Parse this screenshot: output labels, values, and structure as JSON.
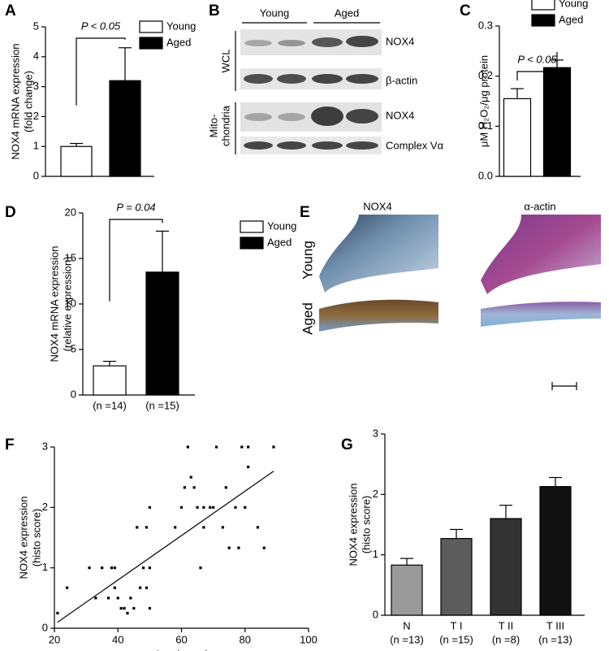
{
  "panel_labels": [
    "A",
    "B",
    "C",
    "D",
    "E",
    "F",
    "G"
  ],
  "blot": {
    "groups": [
      "Young",
      "Aged"
    ],
    "rows": [
      "NOX4",
      "β-actin",
      "NOX4",
      "Complex Vα"
    ],
    "sections": [
      [
        "WCL"
      ],
      [
        "Mito-",
        "chondria"
      ]
    ]
  },
  "histology": {
    "columns": [
      "NOX4",
      "α-actin"
    ],
    "rows": [
      "Young",
      "Aged"
    ]
  },
  "chart_data": [
    {
      "type": "bar",
      "ylabel": [
        "NOX4 mRNA expression",
        "(fold change)"
      ],
      "values": [
        1.0,
        3.2
      ],
      "errors": [
        0.1,
        1.1
      ],
      "colors": [
        "#ffffff",
        "#000000"
      ],
      "legend": [
        "Young",
        "Aged"
      ],
      "annotation": "P < 0.05",
      "ylim": [
        0,
        5
      ],
      "yticks": [
        0,
        1,
        2,
        3,
        4,
        5
      ]
    },
    {
      "type": "bar",
      "ylabel": [
        "μM H₂O₂/μg protein"
      ],
      "values": [
        0.155,
        0.217
      ],
      "errors": [
        0.02,
        0.015
      ],
      "colors": [
        "#ffffff",
        "#000000"
      ],
      "legend": [
        "Young",
        "Aged"
      ],
      "annotation": "P < 0.05",
      "ylim": [
        0,
        0.3
      ],
      "yticks": [
        {
          "value": 0,
          "label": "0.0"
        },
        0.1,
        0.2,
        0.3
      ]
    },
    {
      "type": "bar",
      "ylabel": [
        "NOX4 mRNA expression",
        "(relative expression)"
      ],
      "categories": [
        "(n =14)",
        "(n =15)"
      ],
      "values": [
        3.2,
        13.5
      ],
      "errors": [
        0.5,
        4.5
      ],
      "colors": [
        "#ffffff",
        "#000000"
      ],
      "legend": [
        "Young",
        "Aged"
      ],
      "annotation": "P = 0.04",
      "ylim": [
        0,
        20
      ],
      "yticks": [
        0,
        5,
        10,
        15,
        20
      ]
    },
    {
      "type": "scatter",
      "xlabel": "Age (years)",
      "ylabel": [
        "NOX4 expression",
        "(histo score)"
      ],
      "x": [
        21,
        24,
        31,
        33,
        35,
        37,
        38,
        39,
        39,
        40,
        41,
        42,
        43,
        44,
        45,
        46,
        47,
        48,
        49,
        49,
        50,
        50,
        50,
        58,
        60,
        61,
        62,
        63,
        64,
        65,
        66,
        67,
        67,
        69,
        70,
        71,
        73,
        74,
        75,
        77,
        78,
        79,
        80,
        81,
        81,
        84,
        86,
        89
      ],
      "y": [
        0.25,
        0.67,
        1,
        0.5,
        1,
        0.5,
        1,
        1,
        0.67,
        0.5,
        0.33,
        0.33,
        0.25,
        0.5,
        0.33,
        1.67,
        0.67,
        1,
        0.67,
        1.67,
        1,
        2,
        0.33,
        1.67,
        2,
        2.33,
        3,
        2.5,
        2.33,
        2,
        1,
        1.67,
        2,
        2,
        2,
        3,
        1.67,
        2.33,
        1.33,
        2,
        1.33,
        3,
        2,
        2.67,
        3,
        1.67,
        1.33,
        3
      ],
      "trendline": {
        "x": [
          21,
          89
        ],
        "y": [
          0.1,
          2.6
        ]
      },
      "xlim": [
        20,
        100
      ],
      "xticks": [
        20,
        40,
        60,
        80,
        100
      ],
      "ylim": [
        0,
        3
      ],
      "yticks": [
        0,
        1,
        2,
        3
      ]
    },
    {
      "type": "bar",
      "ylabel": [
        "NOX4 expression",
        "(histo score)"
      ],
      "categories": [
        "N",
        "T I",
        "T II",
        "T III"
      ],
      "category_notes": [
        "(n =13)",
        "(n =15)",
        "(n =8)",
        "(n =13)"
      ],
      "values": [
        0.83,
        1.27,
        1.6,
        2.13
      ],
      "errors": [
        0.11,
        0.15,
        0.22,
        0.15
      ],
      "colors": [
        "#9a9a9a",
        "#5c5c5c",
        "#333333",
        "#111111"
      ],
      "ylim": [
        0,
        3
      ],
      "yticks": [
        0,
        1,
        2,
        3
      ]
    }
  ]
}
